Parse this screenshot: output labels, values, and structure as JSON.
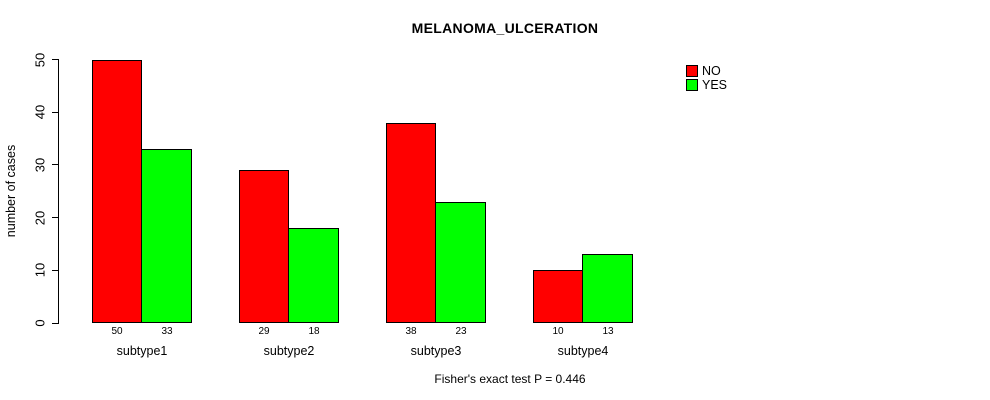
{
  "chart_data": {
    "type": "bar",
    "title": "MELANOMA_ULCERATION",
    "ylabel": "number of cases",
    "xlabel": "",
    "categories": [
      "subtype1",
      "subtype2",
      "subtype3",
      "subtype4"
    ],
    "series": [
      {
        "name": "NO",
        "color": "#ff0000",
        "values": [
          50,
          29,
          38,
          10
        ]
      },
      {
        "name": "YES",
        "color": "#00ff00",
        "values": [
          33,
          18,
          23,
          13
        ]
      }
    ],
    "ylim": [
      0,
      50
    ],
    "yticks": [
      0,
      10,
      20,
      30,
      40,
      50
    ],
    "grid": false,
    "show_bar_value_labels": true,
    "legend": {
      "position": "top-right",
      "entries": [
        "NO",
        "YES"
      ]
    },
    "annotation": "Fisher's exact test P = 0.446",
    "colors": {
      "axis": "#000000",
      "text": "#000000",
      "background": "#ffffff"
    }
  }
}
